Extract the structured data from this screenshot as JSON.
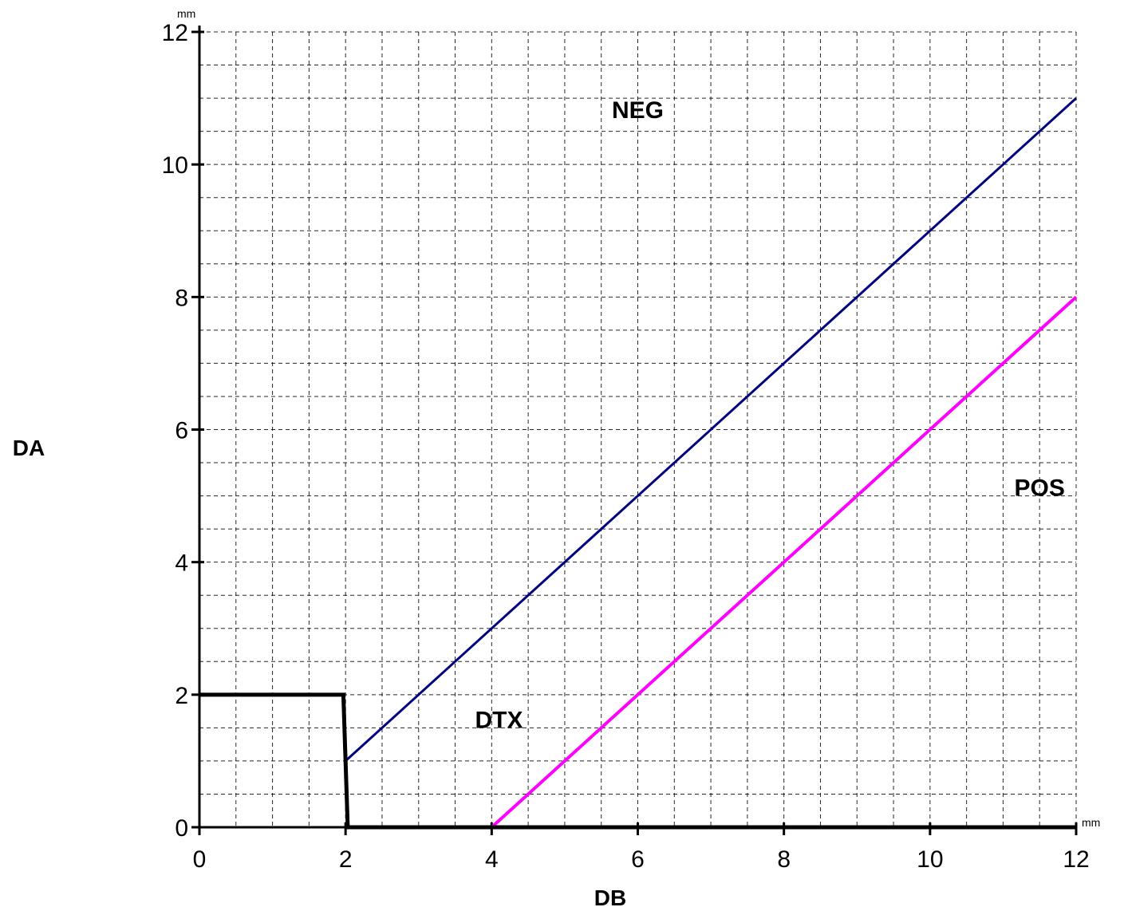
{
  "chart_data": {
    "type": "line",
    "xlabel": "DB",
    "ylabel": "DA",
    "x_unit": "mm",
    "y_unit": "mm",
    "xlim": [
      0,
      12
    ],
    "ylim": [
      0,
      12
    ],
    "x_ticks": [
      "0",
      "2",
      "4",
      "6",
      "8",
      "10",
      "12"
    ],
    "y_ticks": [
      "0",
      "2",
      "4",
      "6",
      "8",
      "10",
      "12"
    ],
    "grid": true,
    "region_labels": [
      {
        "text": "NEG",
        "x": 6.0,
        "y": 10.7
      },
      {
        "text": "DTX",
        "x": 4.1,
        "y": 1.5
      },
      {
        "text": "POS",
        "x": 11.5,
        "y": 5.0
      }
    ],
    "series": [
      {
        "color": "#000080",
        "points": [
          [
            2.0,
            1.0
          ],
          [
            12.0,
            11.0
          ]
        ]
      },
      {
        "color": "#FF00FF",
        "points": [
          [
            4.0,
            0.0
          ],
          [
            12.0,
            8.0
          ]
        ]
      },
      {
        "color": "#000000",
        "points": [
          [
            0.0,
            2.0
          ],
          [
            1.97,
            2.0
          ],
          [
            2.03,
            0.0
          ],
          [
            12.0,
            0.0
          ]
        ]
      }
    ]
  }
}
